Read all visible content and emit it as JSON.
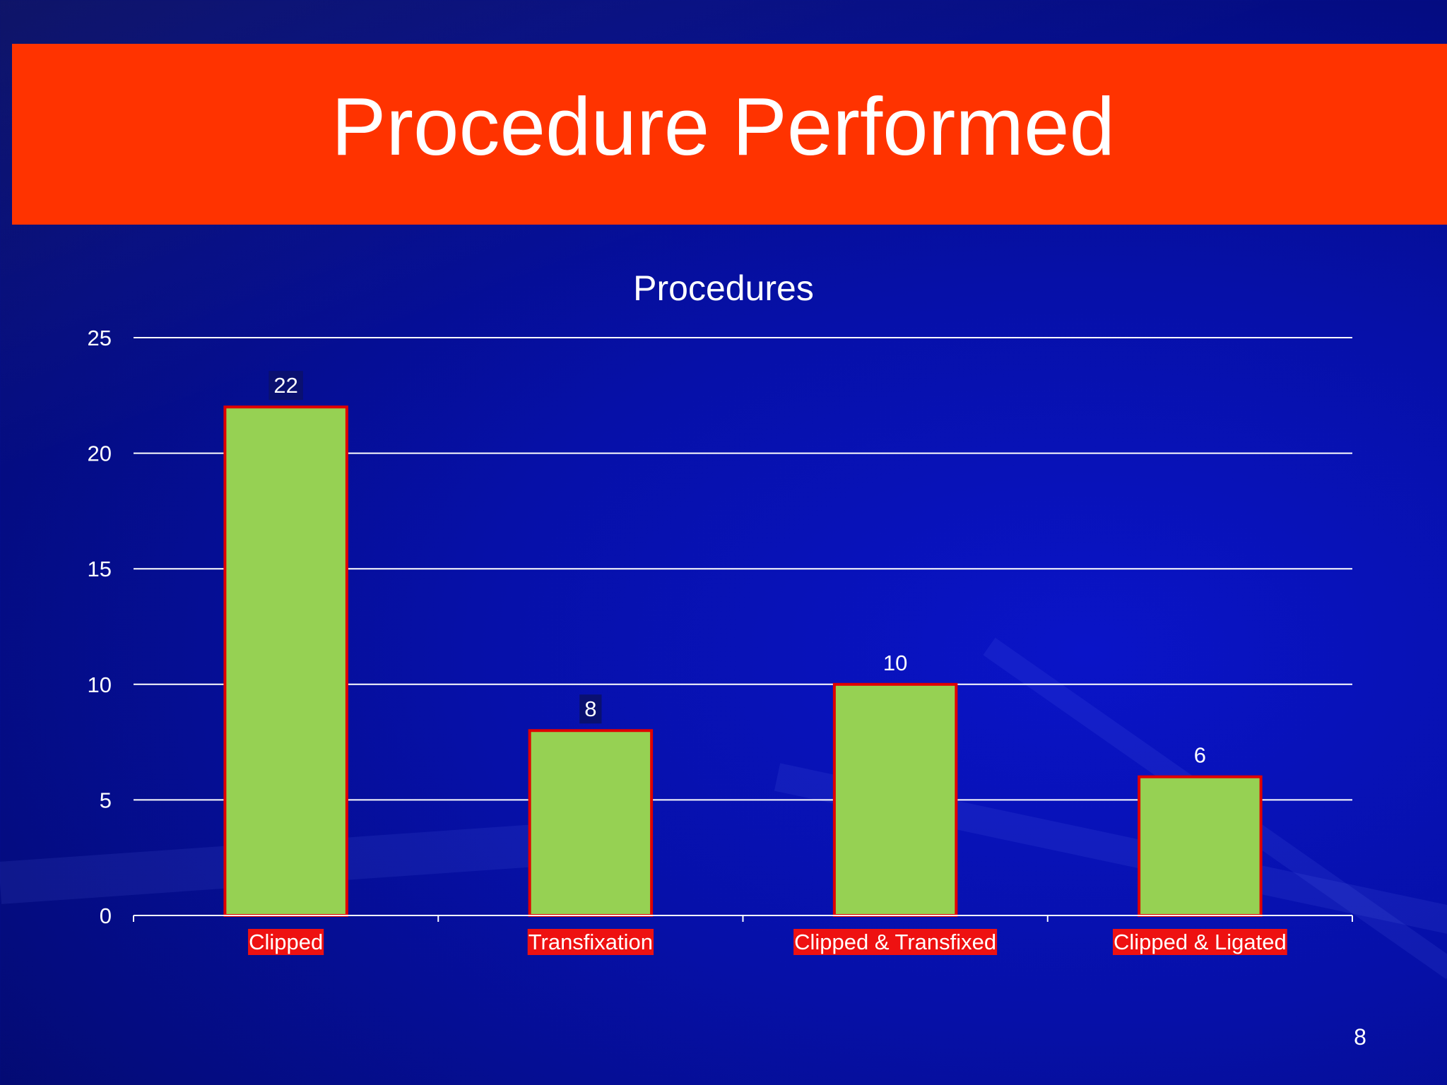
{
  "slide": {
    "title": "Procedure Performed",
    "page_number": "8"
  },
  "colors": {
    "banner": "#ff3300",
    "bar_fill": "#96d153",
    "bar_border": "#e00000",
    "label_bg": "#ee1111",
    "value_label_bg": "#0a1070",
    "text": "#ffffff"
  },
  "chart_data": {
    "type": "bar",
    "title": "Procedures",
    "categories": [
      "Clipped",
      "Transfixation",
      "Clipped & Transfixed",
      "Clipped & Ligated"
    ],
    "values": [
      22,
      8,
      10,
      6
    ],
    "ylim": [
      0,
      25
    ],
    "yticks": [
      0,
      5,
      10,
      15,
      20,
      25
    ],
    "grid": true,
    "legend": "none"
  }
}
